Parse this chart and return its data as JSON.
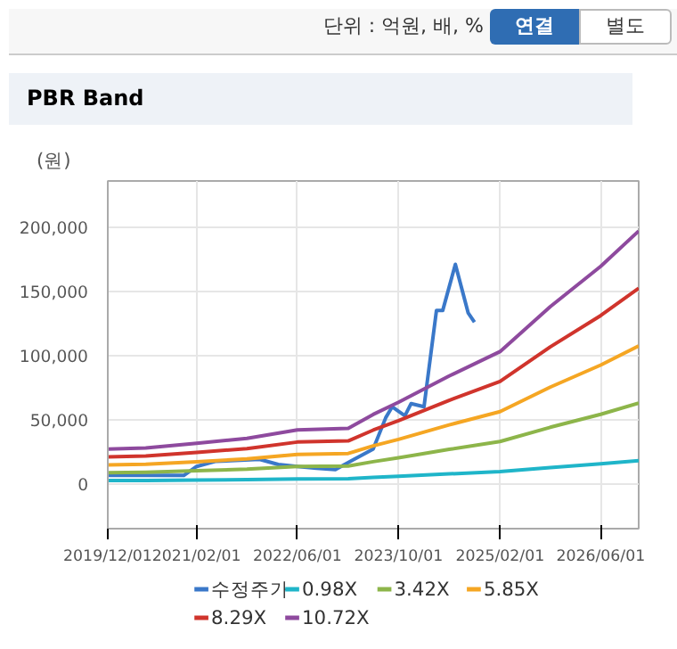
{
  "chart_data": {
    "type": "line",
    "title": "PBR Band",
    "ylabel": "(원)",
    "annotations": [
      "단위 : 억원, 배, %",
      "연결",
      "별도"
    ],
    "xlim": [
      "2019-12-01",
      "2026-12-01"
    ],
    "ylim": [
      -35000,
      236000
    ],
    "xticks": [
      {
        "value": "2019-12-01",
        "label": "2019/12/01"
      },
      {
        "value": "2021-02-01",
        "label": "2021/02/01"
      },
      {
        "value": "2022-06-01",
        "label": "2022/06/01"
      },
      {
        "value": "2023-10-01",
        "label": "2023/10/01"
      },
      {
        "value": "2025-02-01",
        "label": "2025/02/01"
      },
      {
        "value": "2026-06-01",
        "label": "2026/06/01"
      }
    ],
    "yticks": [
      {
        "value": 0,
        "label": "0"
      },
      {
        "value": 50000,
        "label": "50,000"
      },
      {
        "value": 100000,
        "label": "100,000"
      },
      {
        "value": 150000,
        "label": "150,000"
      },
      {
        "value": 200000,
        "label": "200,000"
      }
    ],
    "grid": true,
    "legend": "bottom",
    "line_style": "solid",
    "x": [
      "2019-12",
      "2020-06",
      "2021-02",
      "2021-10",
      "2022-06",
      "2023-02",
      "2023-06",
      "2023-10",
      "2024-06",
      "2025-02",
      "2025-10",
      "2026-06",
      "2026-12"
    ],
    "series": [
      {
        "name": "수정주가",
        "color": "#3a78c9",
        "x": [
          "2019-12",
          "2020-12",
          "2021-02",
          "2021-05",
          "2021-12",
          "2022-03",
          "2022-06",
          "2022-09",
          "2022-12",
          "2023-03",
          "2023-06",
          "2023-08",
          "2023-09",
          "2023-11",
          "2023-12",
          "2024-02",
          "2024-04",
          "2024-05",
          "2024-07",
          "2024-08",
          "2024-09",
          "2024-10"
        ],
        "values": [
          6500,
          6500,
          13500,
          17400,
          19000,
          15000,
          13500,
          12000,
          11000,
          19000,
          27000,
          51600,
          60000,
          53000,
          62500,
          60000,
          135000,
          135000,
          171000,
          152000,
          133000,
          126000
        ]
      },
      {
        "name": "0.98X",
        "color": "#1fb5c9",
        "values": [
          2500,
          2500,
          2900,
          3200,
          3800,
          3900,
          4900,
          5800,
          7700,
          9400,
          12600,
          15500,
          18000
        ]
      },
      {
        "name": "3.42X",
        "color": "#8db54a",
        "values": [
          8600,
          8900,
          10100,
          11300,
          13400,
          13800,
          17200,
          20200,
          26800,
          32900,
          44000,
          54100,
          62900
        ]
      },
      {
        "name": "5.85X",
        "color": "#f5a623",
        "values": [
          14700,
          15200,
          17200,
          19300,
          22900,
          23600,
          29500,
          34600,
          45900,
          56200,
          75300,
          92500,
          107500
        ]
      },
      {
        "name": "8.29X",
        "color": "#d0342c",
        "values": [
          20900,
          21600,
          24400,
          27400,
          32500,
          33400,
          41800,
          49100,
          65000,
          79700,
          106700,
          131100,
          152400
        ]
      },
      {
        "name": "10.72X",
        "color": "#8e4a9e",
        "values": [
          27000,
          27900,
          31500,
          35400,
          42000,
          43200,
          54000,
          63500,
          84000,
          103000,
          138000,
          169500,
          197000
        ]
      }
    ]
  }
}
